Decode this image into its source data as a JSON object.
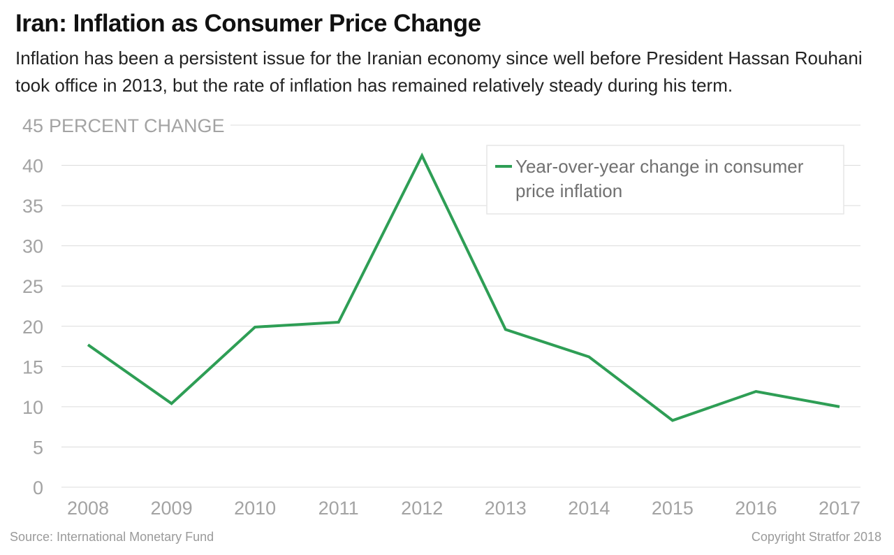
{
  "header": {
    "title": "Iran: Inflation as Consumer Price Change",
    "subtitle": "Inflation has been a persistent issue for the Iranian economy since well before President Hassan Rouhani took office in 2013, but the rate of inflation has remained relatively steady during his term."
  },
  "footer": {
    "source": "Source: International Monetary Fund",
    "copyright": "Copyright Stratfor 2018"
  },
  "colors": {
    "series": "#2e9e55",
    "grid": "#dcdcdc",
    "axis_text": "#a3a3a3"
  },
  "chart_data": {
    "type": "line",
    "title": "Iran: Inflation as Consumer Price Change",
    "ylabel": "PERCENT CHANGE",
    "ylim": [
      0,
      45
    ],
    "yticks": [
      0,
      5,
      10,
      15,
      20,
      25,
      30,
      35,
      40,
      45
    ],
    "categories": [
      "2008",
      "2009",
      "2010",
      "2011",
      "2012",
      "2013",
      "2014",
      "2015",
      "2016",
      "2017"
    ],
    "series": [
      {
        "name": "Year-over-year change in consumer price inflation",
        "values": [
          17.7,
          10.4,
          19.9,
          20.5,
          41.2,
          19.6,
          16.2,
          8.3,
          11.9,
          10.0
        ]
      }
    ],
    "grid": true,
    "legend_position": "top-right"
  }
}
